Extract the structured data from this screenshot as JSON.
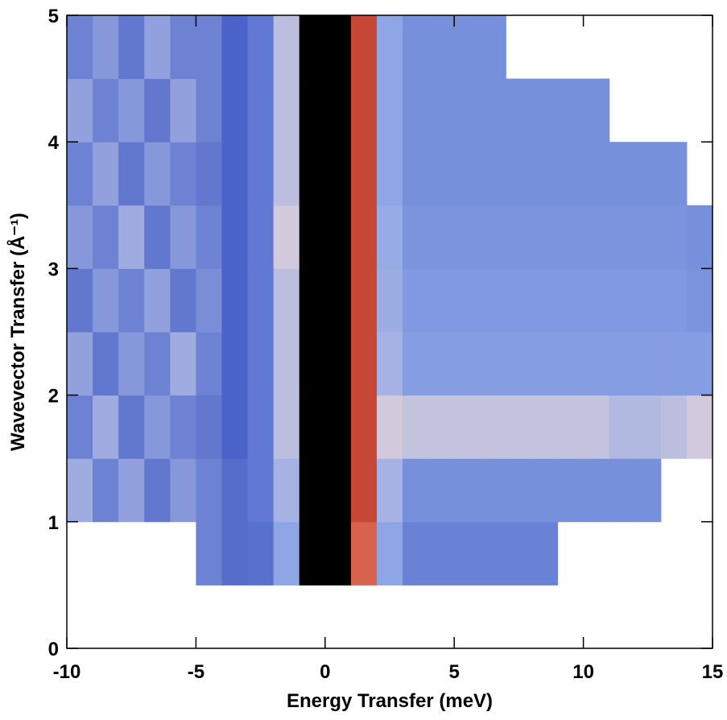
{
  "chart_data": {
    "type": "heatmap",
    "xlabel": "Energy Transfer (meV)",
    "ylabel": "Wavevector Transfer (Å⁻¹)",
    "x": [
      -10,
      -9,
      -8,
      -7,
      -6,
      -5,
      -4,
      -3,
      -2,
      -1,
      0,
      1,
      2,
      3,
      4,
      5,
      6,
      7,
      8,
      9,
      10,
      11,
      12,
      13,
      14,
      15
    ],
    "y": [
      0.5,
      1.0,
      1.5,
      2.0,
      2.5,
      3.0,
      3.5,
      4.0,
      4.5,
      5.0
    ],
    "values": [
      [
        null,
        null,
        null,
        null,
        null,
        0.12,
        0.14,
        0.18,
        0.3,
        1,
        1,
        0.75,
        0.3,
        0.22,
        0.22,
        0.22,
        0.22,
        0.22,
        0.22,
        null,
        null,
        null,
        null,
        null,
        null
      ],
      [
        0.08,
        0.12,
        0.09,
        0.13,
        0.1,
        0.12,
        0.14,
        0.2,
        0.35,
        1,
        1,
        0.8,
        0.35,
        0.25,
        0.25,
        0.25,
        0.25,
        0.25,
        0.25,
        0.25,
        0.25,
        0.25,
        0.25,
        null,
        null
      ],
      [
        0.12,
        0.08,
        0.13,
        0.1,
        0.12,
        0.13,
        0.15,
        0.2,
        0.4,
        1,
        1,
        0.8,
        0.45,
        0.42,
        0.42,
        0.42,
        0.42,
        0.42,
        0.42,
        0.42,
        0.42,
        0.38,
        0.38,
        0.4,
        0.45
      ],
      [
        0.09,
        0.13,
        0.1,
        0.12,
        0.08,
        0.12,
        0.15,
        0.2,
        0.4,
        1,
        1,
        0.8,
        0.35,
        0.28,
        0.28,
        0.28,
        0.28,
        0.28,
        0.28,
        0.28,
        0.28,
        0.28,
        0.28,
        0.28,
        0.28
      ],
      [
        0.13,
        0.1,
        0.12,
        0.09,
        0.13,
        0.11,
        0.15,
        0.2,
        0.4,
        1,
        1,
        0.8,
        0.33,
        0.27,
        0.27,
        0.27,
        0.27,
        0.27,
        0.27,
        0.27,
        0.27,
        0.27,
        0.27,
        0.27,
        0.26
      ],
      [
        0.1,
        0.12,
        0.08,
        0.13,
        0.1,
        0.12,
        0.15,
        0.2,
        0.45,
        1,
        1,
        0.8,
        0.32,
        0.26,
        0.26,
        0.26,
        0.26,
        0.26,
        0.26,
        0.26,
        0.26,
        0.26,
        0.26,
        0.26,
        0.25
      ],
      [
        0.12,
        0.09,
        0.13,
        0.1,
        0.12,
        0.13,
        0.15,
        0.2,
        0.4,
        1,
        1,
        0.8,
        0.3,
        0.25,
        0.25,
        0.25,
        0.25,
        0.25,
        0.25,
        0.25,
        0.25,
        0.25,
        0.25,
        0.25,
        null
      ],
      [
        0.09,
        0.12,
        0.1,
        0.13,
        0.09,
        0.12,
        0.15,
        0.2,
        0.4,
        1,
        1,
        0.8,
        0.3,
        0.25,
        0.25,
        0.25,
        0.25,
        0.25,
        0.25,
        0.25,
        0.25,
        null,
        null,
        null,
        null
      ],
      [
        0.12,
        0.1,
        0.13,
        0.09,
        0.12,
        0.12,
        0.15,
        0.2,
        0.4,
        1,
        1,
        0.8,
        0.3,
        0.25,
        0.25,
        0.25,
        0.25,
        null,
        null,
        null,
        null,
        null,
        null,
        null,
        null
      ]
    ],
    "colormap": [
      [
        0,
        "#ffffff"
      ],
      [
        0.15,
        "#4a63c8"
      ],
      [
        0.3,
        "#8ea6e6"
      ],
      [
        0.5,
        "#e8d6d8"
      ],
      [
        0.7,
        "#e8806a"
      ],
      [
        0.85,
        "#b52a1a"
      ],
      [
        1,
        "#000000"
      ]
    ],
    "xlim": [
      -10,
      15
    ],
    "ylim": [
      0,
      5
    ],
    "xticks": [
      -10,
      -5,
      0,
      5,
      10,
      15
    ],
    "yticks": [
      0,
      1,
      2,
      3,
      4,
      5
    ]
  }
}
